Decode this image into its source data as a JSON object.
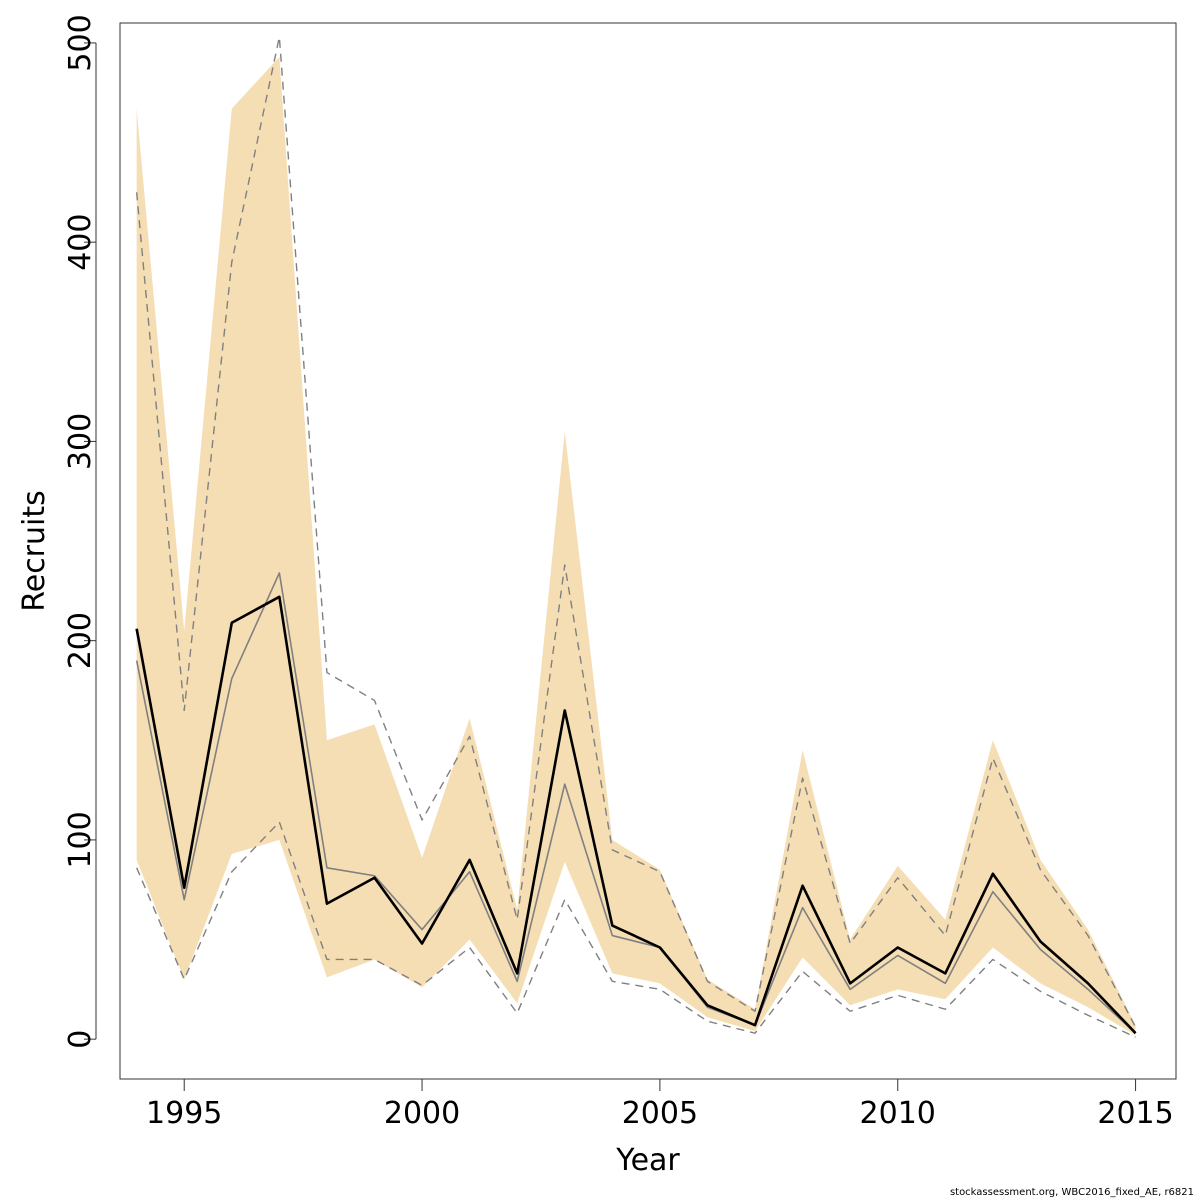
{
  "chart_data": {
    "type": "line",
    "xlabel": "Year",
    "ylabel": "Recruits",
    "xlim": [
      1993.65,
      2015.85
    ],
    "ylim": [
      -20,
      510
    ],
    "x_ticks": [
      1995,
      2000,
      2005,
      2010,
      2015
    ],
    "y_ticks": [
      0,
      100,
      200,
      300,
      400,
      500
    ],
    "grid": false,
    "x": [
      1994,
      1995,
      1996,
      1997,
      1998,
      1999,
      2000,
      2001,
      2002,
      2003,
      2004,
      2005,
      2006,
      2007,
      2008,
      2009,
      2010,
      2011,
      2012,
      2013,
      2014,
      2015
    ],
    "series": [
      {
        "role": "band",
        "color": "#f5deb3",
        "lower": [
          90,
          30,
          93,
          100,
          31,
          40,
          26,
          50,
          18,
          89,
          33,
          28,
          11,
          4,
          41,
          17,
          25,
          20,
          46,
          28,
          16,
          2
        ],
        "upper": [
          467,
          205,
          467,
          493,
          150,
          158,
          91,
          161,
          65,
          305,
          100,
          85,
          30,
          15,
          145,
          50,
          87,
          60,
          150,
          90,
          55,
          7
        ]
      },
      {
        "role": "estimate",
        "color": "#000000",
        "values": [
          206,
          76,
          209,
          222,
          68,
          81,
          48,
          90,
          33,
          165,
          57,
          46,
          17,
          7,
          77,
          28,
          46,
          33,
          83,
          49,
          28,
          3
        ]
      },
      {
        "role": "comparison",
        "color": "#808080",
        "values": [
          190,
          70,
          181,
          234,
          86,
          82,
          55,
          84,
          29,
          128,
          52,
          46,
          16,
          7,
          66,
          25,
          42,
          28,
          74,
          45,
          25,
          3
        ]
      },
      {
        "role": "comparison-upper",
        "color": "#808080",
        "dashed": true,
        "values": [
          425,
          165,
          390,
          503,
          184,
          170,
          110,
          152,
          60,
          238,
          95,
          84,
          29,
          14,
          131,
          48,
          81,
          52,
          141,
          85,
          52,
          6
        ]
      },
      {
        "role": "comparison-lower",
        "color": "#808080",
        "dashed": true,
        "values": [
          86,
          30,
          84,
          109,
          40,
          40,
          27,
          46,
          13,
          70,
          29,
          25,
          9,
          3,
          34,
          14,
          22,
          15,
          40,
          24,
          12,
          1
        ]
      }
    ]
  },
  "footer": "stockassessment.org, WBC2016_fixed_AE, r6821"
}
